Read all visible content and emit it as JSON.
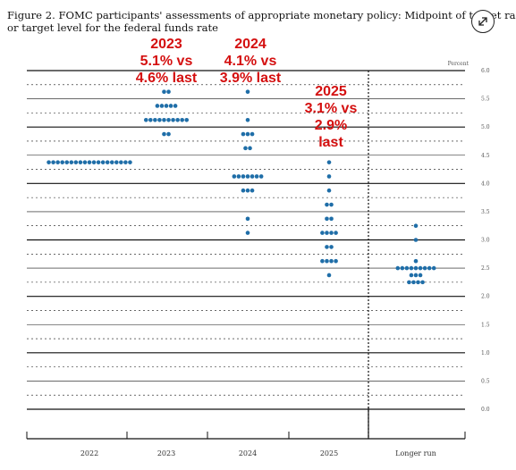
{
  "figure": {
    "caption_line1": "Figure 2.  FOMC participants' assessments of appropriate monetary policy:  Midpoint of target ra",
    "caption_line2": "or target level for the federal funds rate",
    "expand_icon": "expand-arrows-icon"
  },
  "chart_data": {
    "type": "scatter",
    "unit_label": "Percent",
    "categories": [
      "2022",
      "2023",
      "2024",
      "2025",
      "Longer run"
    ],
    "ylim": [
      0.0,
      6.0
    ],
    "yticks": [
      "0.0",
      "0.5",
      "1.0",
      "1.5",
      "2.0",
      "2.5",
      "3.0",
      "3.5",
      "4.0",
      "4.5",
      "5.0",
      "5.5",
      "6.0"
    ],
    "grid": true,
    "dot_color": "#1f6ea8",
    "series": [
      {
        "category": "2022",
        "dots": [
          {
            "y": 4.375,
            "count": 19
          }
        ]
      },
      {
        "category": "2023",
        "dots": [
          {
            "y": 5.625,
            "count": 2
          },
          {
            "y": 5.375,
            "count": 5
          },
          {
            "y": 5.125,
            "count": 10
          },
          {
            "y": 4.875,
            "count": 2
          }
        ]
      },
      {
        "category": "2024",
        "dots": [
          {
            "y": 5.625,
            "count": 1
          },
          {
            "y": 5.125,
            "count": 1
          },
          {
            "y": 4.875,
            "count": 3
          },
          {
            "y": 4.625,
            "count": 2
          },
          {
            "y": 4.125,
            "count": 7
          },
          {
            "y": 3.875,
            "count": 3
          },
          {
            "y": 3.375,
            "count": 1
          },
          {
            "y": 3.125,
            "count": 1
          }
        ]
      },
      {
        "category": "2025",
        "dots": [
          {
            "y": 4.375,
            "count": 1
          },
          {
            "y": 4.125,
            "count": 1
          },
          {
            "y": 3.875,
            "count": 1
          },
          {
            "y": 3.625,
            "count": 2
          },
          {
            "y": 3.375,
            "count": 2
          },
          {
            "y": 3.125,
            "count": 4
          },
          {
            "y": 2.875,
            "count": 2
          },
          {
            "y": 2.625,
            "count": 4
          },
          {
            "y": 2.375,
            "count": 1
          }
        ]
      },
      {
        "category": "Longer run",
        "dots": [
          {
            "y": 3.25,
            "count": 1
          },
          {
            "y": 3.0,
            "count": 1
          },
          {
            "y": 2.625,
            "count": 1
          },
          {
            "y": 2.5,
            "count": 9
          },
          {
            "y": 2.375,
            "count": 3
          },
          {
            "y": 2.25,
            "count": 4
          }
        ]
      }
    ],
    "annotations": [
      {
        "category": "2023",
        "lines": [
          "2023",
          "5.1% vs",
          "4.6% last"
        ],
        "color": "#d40f0f"
      },
      {
        "category": "2024",
        "lines": [
          "2024",
          "4.1% vs",
          "3.9% last"
        ],
        "color": "#d40f0f"
      },
      {
        "category": "2025",
        "lines": [
          "2025",
          "3.1% vs",
          "2.9%",
          "last"
        ],
        "color": "#d40f0f"
      }
    ]
  }
}
